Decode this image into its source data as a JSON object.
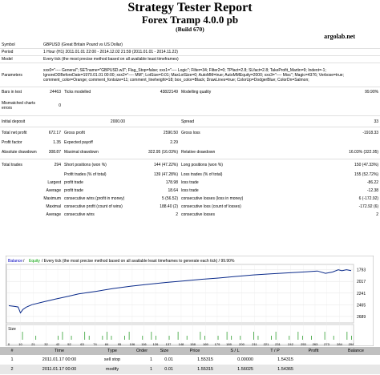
{
  "header": {
    "title": "Strategy Tester Report",
    "subtitle": "Forex Tramp 4.0.0 pb",
    "build": "(Build 670)"
  },
  "site": "argolab.net",
  "info": [
    {
      "label": "Symbol",
      "value": "GBPUSD (Great Britain Pound vs US Dollar)"
    },
    {
      "label": "Period",
      "value": "1 Hour (H1) 2011.01.01 22:00 - 2014.12.02 21:59 (2011.01.01 - 2014.11.22)"
    },
    {
      "label": "Model",
      "value": "Every tick (the most precise method based on all available least timeframes)"
    },
    {
      "label": "Parameters",
      "value": "xxx0=\"---- General\"; SETname=\"GBPUSD.w3\"; Flag_Stop=false; xxx1=\"---- Logic\"; Filter=34; Filter2=0; TPfact=2.8; SLfact=2.8; TakeProfit_Martin=9; Indent=-1; IgnoreDDBeforeDate=1970.01.01 00:00; xxx2=\"---- MM\"; LotSize=0.01; MaxLotSize=0; AutoMM=true; AutoMMEquity=2000; xxx3=\"---- Misc\"; Magic=4376; Verbose=true; comment_color=Orange; comment_fontsize=11; comment_lineheight=18; box_color=Black; DrawLines=true; ColorUp=DodgerBlue; ColorDn=Salmon;"
    }
  ],
  "stats": {
    "bars_label": "Bars in test",
    "bars": "24463",
    "ticks_label": "Ticks modelled",
    "ticks": "43822149",
    "mq_label": "Modelling quality",
    "mq": "99.90%",
    "mismatch_label": "Mismatched charts errors",
    "mismatch": "0",
    "deposit_label": "Initial deposit",
    "deposit": "2000.00",
    "spread_label": "Spread",
    "spread": "33",
    "np_label": "Total net profit",
    "np": "672.17",
    "gp_label": "Gross profit",
    "gp": "2590.50",
    "gl_label": "Gross loss",
    "gl": "-1918.33",
    "pf_label": "Profit factor",
    "pf": "1.35",
    "ep_label": "Expected payoff",
    "ep": "2.29",
    "ad_label": "Absolute drawdown",
    "ad": "308.87",
    "md_label": "Maximal drawdown",
    "md": "322.95 (16.03%)",
    "rd_label": "Relative drawdown",
    "rd": "16.03% (322.95)",
    "tt_label": "Total trades",
    "tt": "294",
    "sp_label": "Short positions (won %)",
    "sp": "144 (47.22%)",
    "lp_label": "Long positions (won %)",
    "lp": "150 (47.33%)",
    "pt_label": "Profit trades (% of total)",
    "pt": "139 (47.28%)",
    "lt_label": "Loss trades (% of total)",
    "lt": "155 (52.72%)",
    "largest_label": "Largest",
    "lpt_label": "profit trade",
    "lpt": "178.98",
    "llt_label": "loss trade",
    "llt": "-86.22",
    "average_label": "Average",
    "apt_label": "profit trade",
    "apt": "18.64",
    "alt_label": "loss trade",
    "alt": "-12.38",
    "maximum_label": "Maximum",
    "mcw_label": "consecutive wins (profit in money)",
    "mcw": "5 (56.52)",
    "mcl_label": "consecutive losses (loss in money)",
    "mcl": "6 (-172.92)",
    "maximal_label": "Maximal",
    "mcp_label": "consecutive profit (count of wins)",
    "mcp": "188.40 (2)",
    "mcll_label": "consecutive loss (count of losses)",
    "mcll": "-172.92 (6)",
    "average2_label": "Average",
    "acw_label": "consecutive wins",
    "acw": "2",
    "acl_label": "consecutive losses",
    "acl": "2"
  },
  "chart": {
    "legend_balance": "Balance",
    "legend_sep": " / ",
    "legend_equity": "Equity",
    "legend_desc": " / Every tick (the most precise method based on all available least timeframes to generate each tick) / 99.90%",
    "size_label": "Size",
    "y_ticks": [
      "2689",
      "2465",
      "2241",
      "2017",
      "1793"
    ],
    "x_ticks": [
      "0",
      "10",
      "21",
      "32",
      "42",
      "52",
      "63",
      "74",
      "84",
      "95",
      "106",
      "116",
      "126",
      "137",
      "148",
      "158",
      "169",
      "179",
      "189",
      "200",
      "211",
      "221",
      "231",
      "242",
      "253",
      "263",
      "273",
      "284",
      "294"
    ]
  },
  "chart_data": {
    "type": "line",
    "ylim": [
      1700,
      2760
    ],
    "y_ticks": [
      1793,
      2017,
      2241,
      2465,
      2689
    ],
    "xlim": [
      0,
      294
    ],
    "series": [
      {
        "name": "Balance",
        "x": [
          0,
          5,
          8,
          10,
          12,
          15,
          20,
          30,
          40,
          50,
          60,
          75,
          90,
          105,
          120,
          135,
          150,
          165,
          180,
          195,
          210,
          225,
          240,
          255,
          265,
          272,
          278,
          283,
          286,
          290,
          294
        ],
        "values": [
          2000,
          1985,
          1975,
          1862,
          1925,
          1972,
          2020,
          2075,
          2125,
          2175,
          2225,
          2275,
          2330,
          2375,
          2410,
          2445,
          2475,
          2505,
          2530,
          2560,
          2590,
          2610,
          2630,
          2650,
          2665,
          2620,
          2645,
          2689,
          2670,
          2690,
          2672
        ]
      }
    ],
    "volume": [
      0,
      0,
      0,
      2,
      0,
      0,
      1,
      0,
      0,
      0,
      0,
      1,
      2,
      0,
      1,
      0,
      0,
      2,
      1,
      0,
      0,
      1,
      2,
      1,
      0,
      0,
      1,
      2,
      0,
      0,
      1,
      0,
      2,
      1,
      0,
      0,
      1,
      0,
      2,
      0,
      1,
      0,
      0,
      2,
      1,
      0,
      0,
      1,
      0,
      2,
      1,
      0,
      1,
      0,
      0,
      2,
      1,
      0,
      0,
      1,
      2,
      0,
      0,
      1,
      0,
      2,
      1,
      0,
      1,
      0,
      0,
      2,
      0,
      1,
      0,
      0,
      2,
      1
    ]
  },
  "orders": {
    "headers": [
      "#",
      "Time",
      "Type",
      "Order",
      "Size",
      "Price",
      "S / L",
      "T / P",
      "Profit",
      "Balance"
    ],
    "rows": [
      [
        "1",
        "2011.01.17 00:00",
        "sell stop",
        "1",
        "0.01",
        "1.55315",
        "0.00000",
        "1.54315",
        "",
        ""
      ],
      [
        "2",
        "2011.01.17 00:00",
        "modify",
        "1",
        "0.01",
        "1.55315",
        "1.56025",
        "1.54365",
        "",
        ""
      ]
    ]
  }
}
